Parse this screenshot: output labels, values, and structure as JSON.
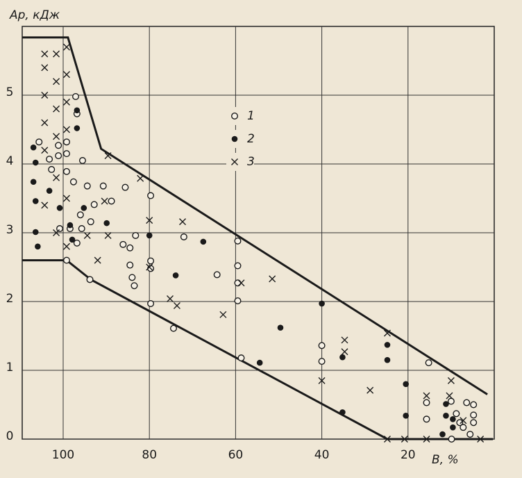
{
  "chart_data": {
    "type": "scatter",
    "y_label": "Aр, кДж",
    "x_label": "B, %",
    "xlim": [
      109.5,
      0
    ],
    "ylim": [
      0,
      6
    ],
    "xticks": [
      100,
      80,
      60,
      40,
      20
    ],
    "yticks": [
      0,
      1,
      2,
      3,
      4,
      5
    ],
    "grid": true,
    "series": [
      {
        "name": "1",
        "marker": "open-circle",
        "color": "#1a1a1a",
        "x": [
          99.2,
          93.8,
          97.1,
          96.8,
          101.1,
          101.1,
          102.7,
          95.5,
          99.2,
          97.6,
          94.4,
          90.7,
          88.8,
          92.8,
          96,
          93.6,
          95.7,
          98.4,
          96.8,
          100.8,
          85.6,
          79.7,
          86.1,
          84.5,
          84.5,
          84,
          83.5,
          83.2,
          79.7,
          79.7,
          79.7,
          72,
          74.4,
          64.3,
          59.5,
          59.5,
          59.5,
          59.5,
          58.7,
          40,
          40,
          15.2,
          15.7,
          15.7,
          10,
          8.8,
          8,
          7.2,
          6.4,
          4.8,
          4.8,
          5.6,
          9.9,
          4.8,
          99.2,
          99.2,
          103.2,
          105.6
        ],
        "y": [
          2.6,
          2.32,
          4.98,
          4.73,
          4.27,
          4.12,
          3.92,
          4.05,
          3.89,
          3.74,
          3.68,
          3.68,
          3.46,
          3.41,
          3.26,
          3.16,
          3.06,
          3.06,
          2.85,
          3.06,
          3.66,
          3.54,
          2.83,
          2.78,
          2.53,
          2.35,
          2.23,
          2.96,
          2.59,
          2.48,
          1.97,
          2.94,
          1.61,
          2.39,
          2.88,
          2.52,
          2.27,
          2.01,
          1.18,
          1.36,
          1.13,
          1.11,
          0.53,
          0.29,
          0.55,
          0.37,
          0.24,
          0.17,
          0.53,
          0.5,
          0.24,
          0.07,
          0,
          0.35,
          4.32,
          4.15,
          4.07,
          4.32
        ]
      },
      {
        "name": "2",
        "marker": "dot",
        "color": "#1a1a1a",
        "x": [
          106.9,
          106.4,
          106.9,
          103.2,
          106.4,
          106.4,
          105.9,
          96.8,
          96.8,
          100.8,
          98.4,
          97.9,
          95.2,
          89.9,
          80,
          67.5,
          73.9,
          49.6,
          54.4,
          40,
          35.2,
          35.2,
          24.8,
          24.8,
          20.5,
          20.5,
          11.2,
          11.2,
          12,
          9.6,
          9.6
        ],
        "y": [
          4.24,
          4.02,
          3.74,
          3.61,
          3.46,
          3.01,
          2.8,
          4.52,
          4.78,
          3.36,
          3.11,
          2.9,
          3.36,
          3.14,
          2.96,
          2.87,
          2.38,
          1.62,
          1.11,
          1.97,
          1.19,
          0.39,
          1.37,
          1.15,
          0.8,
          0.34,
          0.51,
          0.34,
          0.07,
          0.29,
          0.17
        ]
      },
      {
        "name": "3",
        "marker": "cross",
        "color": "#1a1a1a",
        "x": [
          104.3,
          104.3,
          104.3,
          104.3,
          104.3,
          101.6,
          101.6,
          101.6,
          101.6,
          101.6,
          99.2,
          99.2,
          99.2,
          99.2,
          99.2,
          104.3,
          101.6,
          99.2,
          89.6,
          82.1,
          90.4,
          92,
          80,
          80,
          72.3,
          75.2,
          73.6,
          62.9,
          58.7,
          51.5,
          40,
          34.7,
          34.7,
          28.8,
          24.8,
          24.8,
          20.8,
          15.7,
          15.7,
          10,
          10.4,
          7.2,
          3.2,
          94.4,
          89.6
        ],
        "y": [
          5.6,
          5.4,
          5.0,
          4.6,
          4.2,
          5.6,
          5.2,
          4.8,
          4.4,
          3.8,
          5.7,
          5.3,
          4.9,
          4.5,
          3.5,
          3.4,
          3.0,
          2.8,
          4.12,
          3.79,
          3.46,
          2.6,
          2.5,
          3.18,
          3.16,
          2.04,
          1.94,
          1.81,
          2.27,
          2.33,
          0.85,
          1.44,
          1.27,
          0.71,
          1.54,
          0,
          0,
          0.63,
          0,
          0.85,
          0.63,
          0.27,
          0,
          2.96,
          2.96
        ]
      }
    ],
    "boundaries": [
      {
        "x": [
          109.5,
          98.9,
          91.2,
          1.6
        ],
        "y": [
          5.84,
          5.84,
          4.22,
          0.65
        ]
      },
      {
        "x": [
          109.5,
          99.2,
          93.6,
          24.8,
          0.3
        ],
        "y": [
          2.6,
          2.6,
          2.32,
          0,
          0
        ]
      }
    ]
  }
}
